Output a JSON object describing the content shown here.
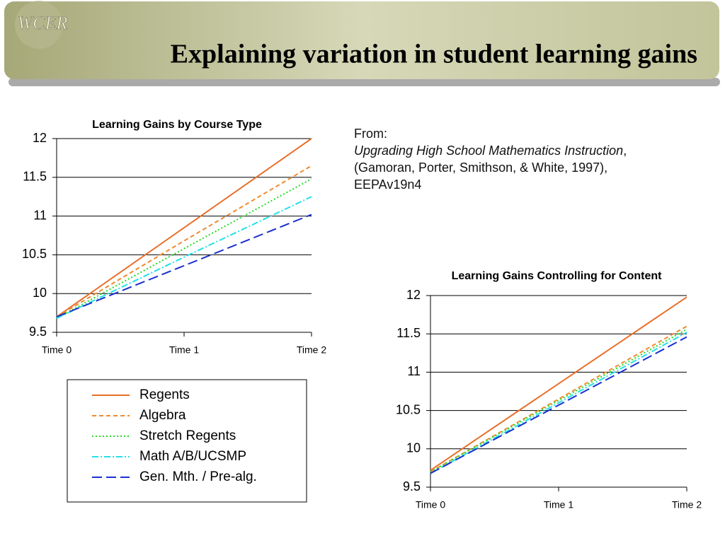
{
  "header": {
    "logo": "WCER",
    "title": "Explaining variation in student learning gains"
  },
  "citation": {
    "from": "From:",
    "title": "Upgrading High School Mathematics Instruction",
    "title_suffix": ",",
    "authors": "(Gamoran, Porter, Smithson, & White, 1997),",
    "source": "EEPAv19n4"
  },
  "chart_data": [
    {
      "type": "line",
      "title": "Learning Gains by Course Type",
      "categories": [
        "Time 0",
        "Time 1",
        "Time 2"
      ],
      "ylim": [
        9.5,
        12
      ],
      "yticks": [
        9.5,
        10,
        10.5,
        11,
        11.5,
        12
      ],
      "grid": true,
      "legend": "below",
      "series": [
        {
          "name": "Regents",
          "color": "#e8702a",
          "style": "solid",
          "values": [
            9.7,
            10.85,
            12
          ]
        },
        {
          "name": "Algebra",
          "color": "#f08a30",
          "style": "dashed",
          "values": [
            9.7,
            10.68,
            11.65
          ]
        },
        {
          "name": "Stretch Regents",
          "color": "#22dd22",
          "style": "dotted",
          "values": [
            9.68,
            10.58,
            11.48
          ]
        },
        {
          "name": "Math A/B/UCSMP",
          "color": "#22e0e8",
          "style": "dashdot",
          "values": [
            9.68,
            10.47,
            11.25
          ]
        },
        {
          "name": "Gen. Mth. / Pre-alg.",
          "color": "#1a2fd0",
          "style": "longdash",
          "values": [
            9.7,
            10.36,
            11.02
          ]
        }
      ]
    },
    {
      "type": "line",
      "title": "Learning Gains Controlling for Content",
      "categories": [
        "Time 0",
        "Time 1",
        "Time 2"
      ],
      "ylim": [
        9.5,
        12
      ],
      "yticks": [
        9.5,
        10,
        10.5,
        11,
        11.5,
        12
      ],
      "grid": true,
      "series": [
        {
          "name": "Regents",
          "color": "#e8702a",
          "style": "solid",
          "values": [
            9.72,
            10.85,
            11.98
          ]
        },
        {
          "name": "Algebra",
          "color": "#f08a30",
          "style": "dashed",
          "values": [
            9.7,
            10.65,
            11.6
          ]
        },
        {
          "name": "Stretch Regents",
          "color": "#22dd22",
          "style": "dotted",
          "values": [
            9.7,
            10.63,
            11.56
          ]
        },
        {
          "name": "Math A/B/UCSMP",
          "color": "#22e0e8",
          "style": "dashdot",
          "values": [
            9.68,
            10.6,
            11.52
          ]
        },
        {
          "name": "Gen. Mth. / Pre-alg.",
          "color": "#1a2fd0",
          "style": "longdash",
          "values": [
            9.68,
            10.57,
            11.46
          ]
        }
      ]
    }
  ]
}
